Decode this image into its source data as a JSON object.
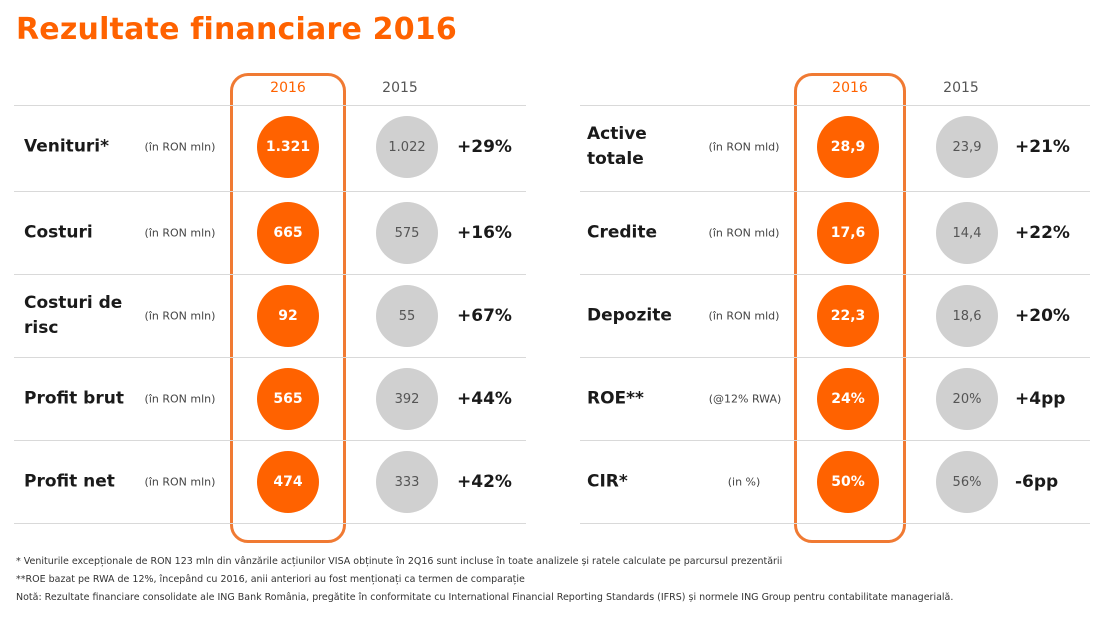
{
  "title": "Rezultate financiare 2016",
  "left": {
    "year_current": "2016",
    "year_previous": "2015",
    "rows": [
      {
        "label": "Venituri*",
        "unit": "(în RON mln)",
        "current": "1.321",
        "previous": "1.022",
        "change": "+29%"
      },
      {
        "label": "Costuri",
        "unit": "(în RON mln)",
        "current": "665",
        "previous": "575",
        "change": "+16%"
      },
      {
        "label": "Costuri de risc",
        "unit": "(în RON mln)",
        "current": "92",
        "previous": "55",
        "change": "+67%"
      },
      {
        "label": "Profit brut",
        "unit": "(în RON mln)",
        "current": "565",
        "previous": "392",
        "change": "+44%"
      },
      {
        "label": "Profit net",
        "unit": "(în RON mln)",
        "current": "474",
        "previous": "333",
        "change": "+42%"
      }
    ]
  },
  "right": {
    "year_current": "2016",
    "year_previous": "2015",
    "rows": [
      {
        "label": "Active totale",
        "unit": "(în RON mld)",
        "current": "28,9",
        "previous": "23,9",
        "change": "+21%"
      },
      {
        "label": "Credite",
        "unit": "(în RON mld)",
        "current": "17,6",
        "previous": "14,4",
        "change": "+22%"
      },
      {
        "label": "Depozite",
        "unit": "(în RON mld)",
        "current": "22,3",
        "previous": "18,6",
        "change": "+20%"
      },
      {
        "label": "ROE**",
        "unit": "(@12% RWA)",
        "current": "24%",
        "previous": "20%",
        "change": "+4pp"
      },
      {
        "label": "CIR*",
        "unit": "(in %)",
        "current": "50%",
        "previous": "56%",
        "change": "-6pp"
      }
    ]
  },
  "footnotes": {
    "note1": "* Veniturile excepționale de RON 123 mln din vânzările acțiunilor VISA obținute în 2Q16 sunt incluse în toate analizele și ratele calculate pe parcursul prezentării",
    "note2": "**ROE bazat pe RWA de 12%, începând cu 2016, anii anteriori au fost menționați ca termen de comparație",
    "note3": "Notă: Rezultate financiare consolidate ale ING Bank România, pregătite în conformitate cu International Financial Reporting Standards (IFRS) și normele ING Group pentru contabilitate managerială."
  },
  "colors": {
    "accent": "#ff6200",
    "highlight_border": "#f07a33",
    "previous_circle": "#d0d0d0"
  }
}
